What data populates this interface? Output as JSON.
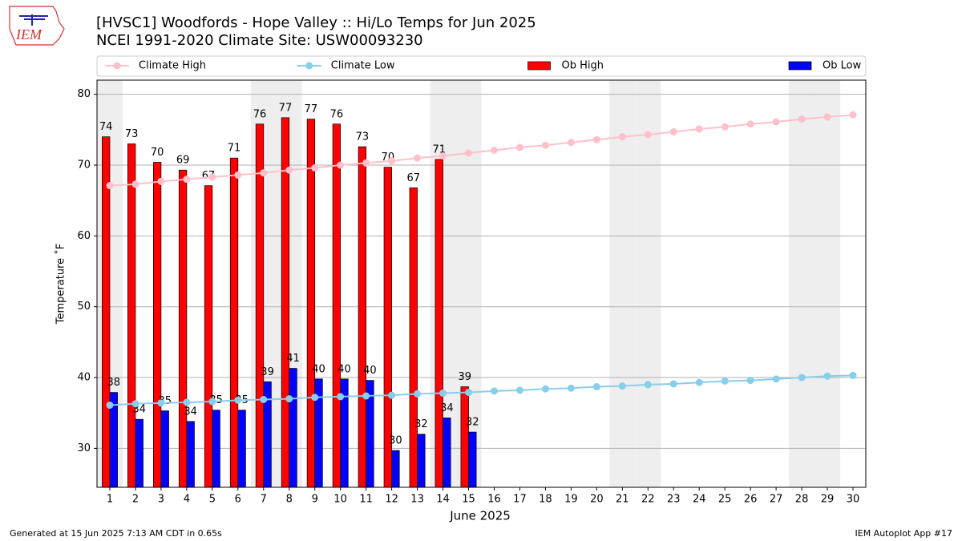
{
  "logo_text": "IEM",
  "footer_left": "Generated at 15 Jun 2025 7:13 AM CDT in 0.65s",
  "footer_right": "IEM Autoplot App #17",
  "chart_data": {
    "type": "bar",
    "title": "[HVSC1] Woodfords - Hope Valley :: Hi/Lo Temps for Jun 2025",
    "subtitle": "NCEI 1991-2020 Climate Site: USW00093230",
    "x_label": "June 2025",
    "y_label": "Temperature ˚F",
    "x": [
      1,
      2,
      3,
      4,
      5,
      6,
      7,
      8,
      9,
      10,
      11,
      12,
      13,
      14,
      15,
      16,
      17,
      18,
      19,
      20,
      21,
      22,
      23,
      24,
      25,
      26,
      27,
      28,
      29,
      30
    ],
    "xlim": [
      0.5,
      30.5
    ],
    "xticks": [
      1,
      2,
      3,
      4,
      5,
      6,
      7,
      8,
      9,
      10,
      11,
      12,
      13,
      14,
      15,
      16,
      17,
      18,
      19,
      20,
      21,
      22,
      23,
      24,
      25,
      26,
      27,
      28,
      29,
      30
    ],
    "ylim": [
      24.5,
      82
    ],
    "yticks": [
      30,
      40,
      50,
      60,
      70,
      80
    ],
    "grid": true,
    "shaded_days": [
      1,
      7,
      8,
      14,
      15,
      21,
      22,
      28,
      29
    ],
    "series": [
      {
        "name": "Climate High",
        "kind": "line",
        "color": "#ffc0cb",
        "values": [
          67.1,
          67.3,
          67.7,
          68.0,
          68.3,
          68.6,
          68.9,
          69.3,
          69.6,
          70.0,
          70.3,
          70.6,
          71.0,
          71.3,
          71.7,
          72.1,
          72.5,
          72.8,
          73.2,
          73.6,
          74.0,
          74.3,
          74.7,
          75.1,
          75.4,
          75.8,
          76.1,
          76.5,
          76.8,
          77.1
        ]
      },
      {
        "name": "Climate Low",
        "kind": "line",
        "color": "#87ceeb",
        "values": [
          36.1,
          36.3,
          36.4,
          36.5,
          36.6,
          36.8,
          36.9,
          37.0,
          37.2,
          37.3,
          37.4,
          37.5,
          37.7,
          37.8,
          37.9,
          38.1,
          38.2,
          38.4,
          38.5,
          38.7,
          38.8,
          39.0,
          39.1,
          39.3,
          39.5,
          39.6,
          39.8,
          40.0,
          40.2,
          40.3
        ]
      },
      {
        "name": "Ob High",
        "kind": "bar",
        "color": "#ff0000",
        "values": [
          74.0,
          73.0,
          70.4,
          69.3,
          67.1,
          71.0,
          75.8,
          76.7,
          76.5,
          75.8,
          72.6,
          69.7,
          66.8,
          70.8,
          38.7,
          null,
          null,
          null,
          null,
          null,
          null,
          null,
          null,
          null,
          null,
          null,
          null,
          null,
          null,
          null
        ],
        "value_labels": [
          "74",
          "73",
          "70",
          "69",
          "67",
          "71",
          "76",
          "77",
          "77",
          "76",
          "73",
          "70",
          "67",
          "71",
          "39",
          null,
          null,
          null,
          null,
          null,
          null,
          null,
          null,
          null,
          null,
          null,
          null,
          null,
          null,
          null
        ]
      },
      {
        "name": "Ob Low",
        "kind": "bar",
        "color": "#0000ff",
        "values": [
          37.9,
          34.1,
          35.3,
          33.8,
          35.4,
          35.4,
          39.4,
          41.3,
          39.8,
          39.8,
          39.6,
          29.7,
          32.0,
          34.3,
          32.3,
          null,
          null,
          null,
          null,
          null,
          null,
          null,
          null,
          null,
          null,
          null,
          null,
          null,
          null,
          null
        ],
        "value_labels": [
          "38",
          "34",
          "35",
          "34",
          "35",
          "35",
          "39",
          "41",
          "40",
          "40",
          "40",
          "30",
          "32",
          "34",
          "32",
          null,
          null,
          null,
          null,
          null,
          null,
          null,
          null,
          null,
          null,
          null,
          null,
          null,
          null,
          null
        ]
      }
    ]
  }
}
